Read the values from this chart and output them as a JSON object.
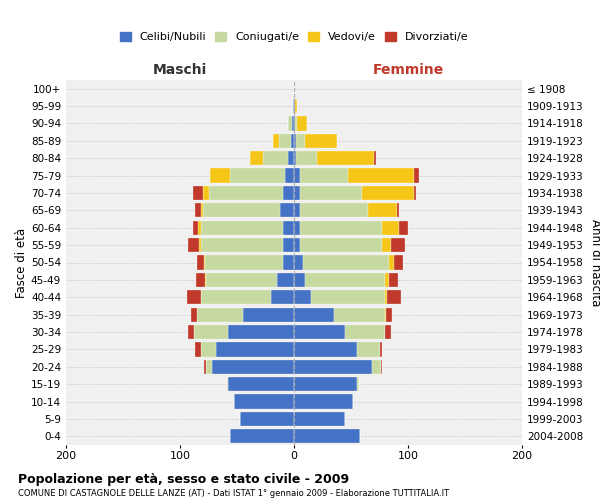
{
  "age_groups": [
    "0-4",
    "5-9",
    "10-14",
    "15-19",
    "20-24",
    "25-29",
    "30-34",
    "35-39",
    "40-44",
    "45-49",
    "50-54",
    "55-59",
    "60-64",
    "65-69",
    "70-74",
    "75-79",
    "80-84",
    "85-89",
    "90-94",
    "95-99",
    "100+"
  ],
  "birth_years": [
    "2004-2008",
    "1999-2003",
    "1994-1998",
    "1989-1993",
    "1984-1988",
    "1979-1983",
    "1974-1978",
    "1969-1973",
    "1964-1968",
    "1959-1963",
    "1954-1958",
    "1949-1953",
    "1944-1948",
    "1939-1943",
    "1934-1938",
    "1929-1933",
    "1924-1928",
    "1919-1923",
    "1914-1918",
    "1909-1913",
    "≤ 1908"
  ],
  "maschi": {
    "celibi": [
      56,
      47,
      53,
      58,
      72,
      68,
      58,
      45,
      20,
      15,
      10,
      10,
      10,
      12,
      10,
      8,
      5,
      3,
      2,
      1,
      0
    ],
    "coniugati": [
      0,
      0,
      0,
      1,
      5,
      14,
      30,
      40,
      62,
      62,
      68,
      72,
      72,
      68,
      65,
      48,
      22,
      10,
      3,
      0,
      0
    ],
    "vedovi": [
      0,
      0,
      0,
      0,
      0,
      0,
      0,
      0,
      0,
      1,
      1,
      1,
      2,
      2,
      5,
      18,
      12,
      5,
      0,
      0,
      0
    ],
    "divorziati": [
      0,
      0,
      0,
      0,
      2,
      5,
      5,
      5,
      12,
      8,
      6,
      10,
      5,
      5,
      9,
      0,
      0,
      0,
      0,
      0,
      0
    ]
  },
  "femmine": {
    "nubili": [
      58,
      45,
      52,
      55,
      68,
      55,
      45,
      35,
      15,
      10,
      8,
      5,
      5,
      5,
      5,
      5,
      2,
      2,
      1,
      1,
      0
    ],
    "coniugate": [
      0,
      0,
      0,
      2,
      8,
      20,
      35,
      45,
      65,
      70,
      75,
      72,
      72,
      60,
      55,
      42,
      18,
      8,
      2,
      0,
      0
    ],
    "vedove": [
      0,
      0,
      0,
      0,
      0,
      0,
      0,
      1,
      2,
      3,
      5,
      8,
      15,
      25,
      45,
      58,
      50,
      28,
      8,
      2,
      0
    ],
    "divorziate": [
      0,
      0,
      0,
      0,
      1,
      2,
      5,
      5,
      12,
      8,
      8,
      12,
      8,
      2,
      2,
      5,
      2,
      0,
      0,
      0,
      0
    ]
  },
  "colors": {
    "celibi": "#4472c4",
    "coniugati": "#c5d9a0",
    "vedovi": "#f5c518",
    "divorziati": "#c0392b"
  },
  "xlim": 200,
  "title": "Popolazione per età, sesso e stato civile - 2009",
  "subtitle": "COMUNE DI CASTAGNOLE DELLE LANZE (AT) - Dati ISTAT 1° gennaio 2009 - Elaborazione TUTTITALIA.IT",
  "ylabel": "Fasce di età",
  "ylabel_right": "Anni di nascita",
  "xlabel_left": "Maschi",
  "xlabel_right": "Femmine",
  "background_color": "#f0f0f0"
}
